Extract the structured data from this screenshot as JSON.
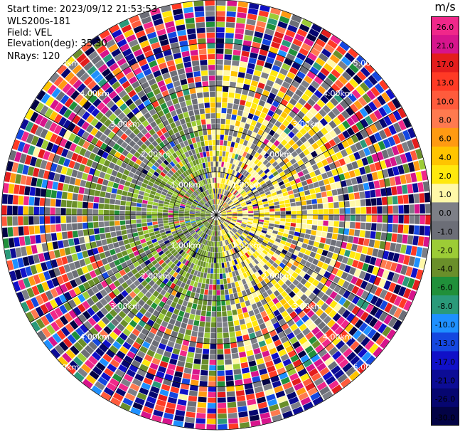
{
  "header": {
    "start_time": "Start time: 2023/09/12 21:53:53",
    "instrument": "WLS200s-181",
    "field": "Field: VEL",
    "elevation": "Elevation(deg): 35.30",
    "nrays": "NRays: 120"
  },
  "colorbar": {
    "unit": "m/s",
    "levels": [
      {
        "label": "26.0",
        "color": "#f0278a"
      },
      {
        "label": "21.0",
        "color": "#d7148c"
      },
      {
        "label": "17.0",
        "color": "#e41d1d"
      },
      {
        "label": "13.0",
        "color": "#ff3a25"
      },
      {
        "label": "10.0",
        "color": "#ff5b3c"
      },
      {
        "label": "8.0",
        "color": "#ff7a4f"
      },
      {
        "label": "6.0",
        "color": "#ff9a12"
      },
      {
        "label": "4.0",
        "color": "#ffc400"
      },
      {
        "label": "2.0",
        "color": "#ffe80d"
      },
      {
        "label": "1.0",
        "color": "#fff8a8"
      },
      {
        "label": "0.0",
        "color": "#7d7f87"
      },
      {
        "label": "-1.0",
        "color": "#6c6e77"
      },
      {
        "label": "-2.0",
        "color": "#9ccc36"
      },
      {
        "label": "-4.0",
        "color": "#6a8f2a"
      },
      {
        "label": "-6.0",
        "color": "#20903a"
      },
      {
        "label": "-8.0",
        "color": "#2a9a7a"
      },
      {
        "label": "-10.0",
        "color": "#1e90ff"
      },
      {
        "label": "-13.0",
        "color": "#1447e0"
      },
      {
        "label": "-17.0",
        "color": "#1010c8"
      },
      {
        "label": "-21.0",
        "color": "#0c0c96"
      },
      {
        "label": "-26.0",
        "color": "#060670"
      },
      {
        "label": "-30.0",
        "color": "#030345"
      }
    ]
  },
  "chart_data": {
    "type": "heatmap",
    "projection": "polar PPI",
    "field": "VEL",
    "units": "m/s",
    "n_rays": 120,
    "range_ring_labels": [
      "1.00km",
      "2.00km",
      "3.00km",
      "4.00km",
      "5.00km"
    ],
    "range_rings_km": [
      1,
      2,
      3,
      4,
      5
    ],
    "max_range_km": 5.0,
    "spoke_angles_deg": [
      0,
      30,
      60,
      90,
      120,
      150,
      180,
      210,
      240,
      270,
      300,
      330
    ],
    "sectors": [
      {
        "azimuth_from_deg": 350,
        "azimuth_to_deg": 170,
        "dominant_velocity_m_s": 2.0
      },
      {
        "azimuth_from_deg": 170,
        "azimuth_to_deg": 350,
        "dominant_velocity_m_s": -2.0
      }
    ],
    "grid": true
  }
}
